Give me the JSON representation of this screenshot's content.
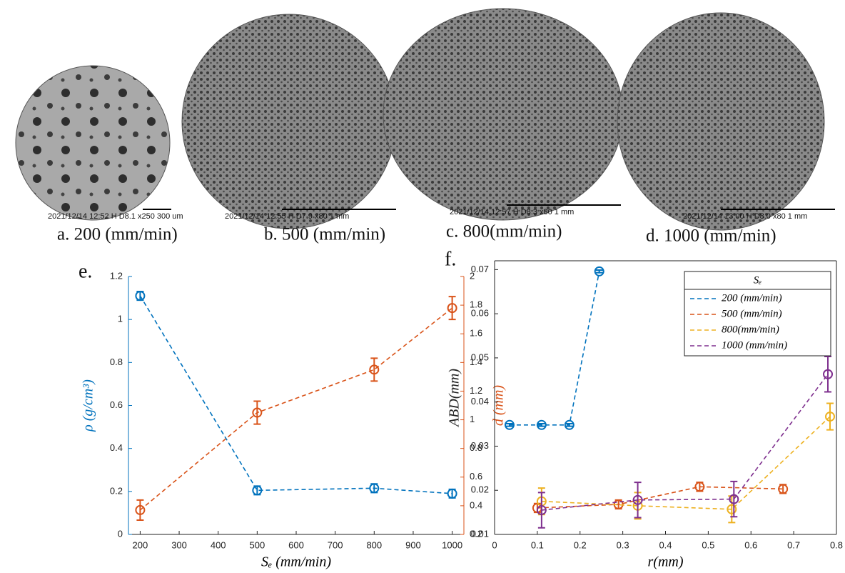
{
  "images": [
    {
      "caption": "a. 200 (mm/min)",
      "info": "2021/12/14   12:52 H   D8.1  x250   300 um"
    },
    {
      "caption": "b. 500 (mm/min)",
      "info": "2021/12/14    12:55 H   D7.9   x80          1 mm"
    },
    {
      "caption": "c. 800(mm/min)",
      "info": "2021/12/14    12:57 H    D8.3   x80          1 mm"
    },
    {
      "caption": "d. 1000 (mm/min)",
      "info": "2021/12/14    13:00 H    D8.0   x80          1 mm"
    }
  ],
  "chart_data": [
    {
      "type": "line",
      "panel": "e.",
      "xlabel": "Sₑ (mm/min)",
      "ylabel": "ρ (g/cm³)",
      "y2label": "d (mm)",
      "x": [
        200,
        500,
        800,
        1000
      ],
      "xlim": [
        170,
        1030
      ],
      "xticks": [
        200,
        300,
        400,
        500,
        600,
        700,
        800,
        900,
        1000
      ],
      "ylim": [
        0,
        1.2
      ],
      "yticks": [
        0,
        0.2,
        0.4,
        0.6,
        0.8,
        1,
        1.2
      ],
      "y2lim": [
        0.2,
        2
      ],
      "y2ticks": [
        0.2,
        0.4,
        0.6,
        0.8,
        1,
        1.2,
        1.4,
        1.6,
        1.8,
        2
      ],
      "series": [
        {
          "color": "#0072bd",
          "values": [
            1.11,
            0.205,
            0.215,
            0.19
          ],
          "errors": [
            0.02,
            0.02,
            0.02,
            0.02
          ]
        },
        {
          "color": "#d95319",
          "axis": "y2",
          "values": [
            0.37,
            1.05,
            1.35,
            1.78
          ],
          "errors": [
            0.07,
            0.08,
            0.08,
            0.08
          ]
        }
      ]
    },
    {
      "type": "line",
      "panel": "f.",
      "xlabel": "r(mm)",
      "ylabel": "ABD(mm)",
      "xlim": [
        0,
        0.8
      ],
      "xticks": [
        0,
        0.1,
        0.2,
        0.3,
        0.4,
        0.5,
        0.6,
        0.7,
        0.8
      ],
      "ylim": [
        0.01,
        0.072
      ],
      "yticks": [
        0.01,
        0.02,
        0.03,
        0.04,
        0.05,
        0.06,
        0.07
      ],
      "legend": "upper right",
      "legend_title": "Sₑ",
      "series": [
        {
          "name": "200 (mm/min)",
          "color": "#0072bd",
          "x": [
            0.035,
            0.11,
            0.175,
            0.245
          ],
          "values": [
            0.0348,
            0.0348,
            0.0348,
            0.0696
          ],
          "errors": [
            0.0003,
            0.0003,
            0.0003,
            0.0003
          ]
        },
        {
          "name": "500 (mm/min)",
          "color": "#d95319",
          "x": [
            0.1,
            0.29,
            0.48,
            0.675
          ],
          "values": [
            0.016,
            0.0168,
            0.0208,
            0.0203
          ],
          "errors": [
            0.001,
            0.001,
            0.001,
            0.001
          ]
        },
        {
          "name": "800(mm/min)",
          "color": "#edb120",
          "x": [
            0.11,
            0.335,
            0.555,
            0.785
          ],
          "values": [
            0.0175,
            0.0165,
            0.0157,
            0.0367
          ],
          "errors": [
            0.003,
            0.003,
            0.003,
            0.003
          ]
        },
        {
          "name": "1000 (mm/min)",
          "color": "#7e2f8e",
          "x": [
            0.11,
            0.335,
            0.56,
            0.78
          ],
          "values": [
            0.0155,
            0.0178,
            0.018,
            0.0463
          ],
          "errors": [
            0.004,
            0.004,
            0.004,
            0.004
          ]
        }
      ]
    }
  ]
}
